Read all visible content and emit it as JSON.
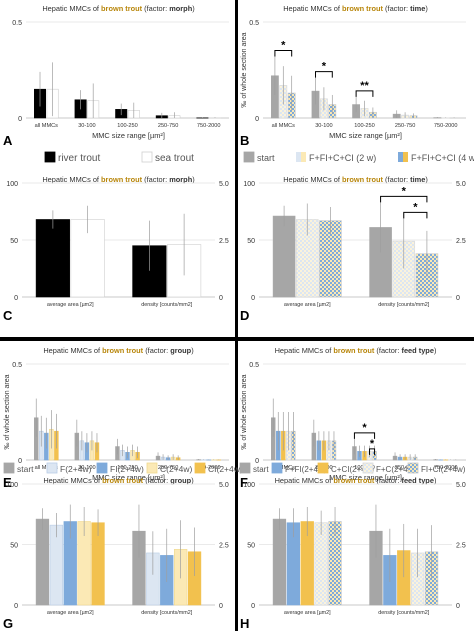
{
  "colors": {
    "brown": "#b8860b",
    "black": "#000000",
    "grey": "#a6a6a6",
    "lightblue": "#dce6f2",
    "blue": "#7eaadb",
    "lightyellow": "#fbe9b5",
    "yellow": "#f2c14e",
    "legend_text": "#555555",
    "err": "#bfbfbf"
  },
  "legends": {
    "morph": [
      {
        "label": "river trout",
        "style": "black"
      },
      {
        "label": "sea trout",
        "style": "white"
      }
    ],
    "time": [
      {
        "label": "start",
        "style": "grey"
      },
      {
        "label": "F+FI+C+CI (2 w)",
        "style": "split_light"
      },
      {
        "label": "F+FI+C+CI (4 w)",
        "style": "split_dark"
      }
    ],
    "group": [
      {
        "label": "start",
        "style": "grey"
      },
      {
        "label": "F(2+4w)",
        "style": "lightblue"
      },
      {
        "label": "FI(2+4w)",
        "style": "blue"
      },
      {
        "label": "C(2+4w)",
        "style": "lightyellow"
      },
      {
        "label": "CI(2+4w)",
        "style": "yellow"
      }
    ],
    "feed": [
      {
        "label": "start",
        "style": "grey"
      },
      {
        "label": "F+FI(2+4w)",
        "style": "blue"
      },
      {
        "label": "C+CI(2+4w)",
        "style": "yellow"
      },
      {
        "label": "F+C(2+4w)",
        "style": "lightmix"
      },
      {
        "label": "FI+CI(2+4w)",
        "style": "mix"
      }
    ]
  },
  "chart_data": [
    {
      "panel": "A",
      "type": "bar",
      "title_pre": "Hepatic MMCs of ",
      "title_brown": "brown trout",
      "title_post": " (factor: ",
      "title_factor": "morph",
      "title_end": ")",
      "xlabel": "MMC size range [µm²]",
      "ylabel": "",
      "ylim": [
        0,
        0.5
      ],
      "yticks": [
        "0",
        "0.5"
      ],
      "categories": [
        "all MMCs",
        "30-100",
        "100-250",
        "250-750",
        "750-2000"
      ],
      "series": [
        {
          "name": "river trout",
          "style": "black",
          "values": [
            0.15,
            0.095,
            0.045,
            0.012,
            0.001
          ],
          "err": [
            0.09,
            0.05,
            0.03,
            0.015,
            0.003
          ]
        },
        {
          "name": "sea trout",
          "style": "white",
          "values": [
            0.15,
            0.09,
            0.04,
            0.012,
            0.001
          ],
          "err": [
            0.14,
            0.09,
            0.04,
            0.018,
            0.003
          ]
        }
      ]
    },
    {
      "panel": "B",
      "type": "bar",
      "title_pre": "Hepatic MMCs of ",
      "title_brown": "brown trout",
      "title_post": " (factor: ",
      "title_factor": "time",
      "title_end": ")",
      "xlabel": "MMC size range [µm²]",
      "ylabel": "‰ of whole section area",
      "ylim": [
        0,
        0.5
      ],
      "yticks": [
        "0",
        "0.5"
      ],
      "categories": [
        "all MMCs",
        "30-100",
        "100-250",
        "250-750",
        "750-2000"
      ],
      "series": [
        {
          "name": "start",
          "style": "grey",
          "values": [
            0.22,
            0.14,
            0.07,
            0.02,
            0.002
          ],
          "err": [
            0.1,
            0.07,
            0.04,
            0.02,
            0.003
          ]
        },
        {
          "name": "F+FI+C+CI (2 w)",
          "style": "split_light",
          "values": [
            0.17,
            0.1,
            0.05,
            0.015,
            0.001
          ],
          "err": [
            0.1,
            0.06,
            0.04,
            0.015,
            0.002
          ]
        },
        {
          "name": "F+FI+C+CI (4 w)",
          "style": "split_dark",
          "values": [
            0.13,
            0.07,
            0.03,
            0.012,
            0.001
          ],
          "err": [
            0.09,
            0.05,
            0.025,
            0.012,
            0.002
          ]
        }
      ],
      "annotations": [
        {
          "category": 0,
          "label": "*"
        },
        {
          "category": 1,
          "label": "*"
        },
        {
          "category": 2,
          "label": "**"
        }
      ]
    },
    {
      "panel": "C",
      "type": "bar",
      "title_pre": "Hepatic MMCs of ",
      "title_brown": "brown trout",
      "title_post": " (factor: ",
      "title_factor": "morph",
      "title_end": ")",
      "xlabel": "",
      "ylabel": "",
      "ylim": [
        0,
        100
      ],
      "yticks": [
        "0",
        "50",
        "100"
      ],
      "ylim_right": [
        0,
        5
      ],
      "yticks_right": [
        "0",
        "2.5",
        "5.0"
      ],
      "categories": [
        "average area [µm2]",
        "density [counts/mm2]"
      ],
      "series": [
        {
          "name": "river trout",
          "style": "black",
          "values": [
            68,
            45
          ],
          "err": [
            8,
            22
          ]
        },
        {
          "name": "sea trout",
          "style": "white",
          "values": [
            68,
            46
          ],
          "err": [
            12,
            27
          ]
        }
      ]
    },
    {
      "panel": "D",
      "type": "bar",
      "title_pre": "Hepatic MMCs of ",
      "title_brown": "brown trout",
      "title_post": " (factor: ",
      "title_factor": "time",
      "title_end": ")",
      "xlabel": "",
      "ylabel": "",
      "ylim": [
        0,
        100
      ],
      "yticks": [
        "0",
        "50",
        "100"
      ],
      "ylim_right": [
        0,
        5
      ],
      "yticks_right": [
        "0",
        "2.5",
        "5.0"
      ],
      "categories": [
        "average area [µm2]",
        "density [counts/mm2]"
      ],
      "series": [
        {
          "name": "start",
          "style": "grey",
          "values": [
            71,
            61
          ],
          "err": [
            9,
            22
          ]
        },
        {
          "name": "F+FI+C+CI (2 w)",
          "style": "split_light",
          "values": [
            68,
            49
          ],
          "err": [
            14,
            24
          ]
        },
        {
          "name": "F+FI+C+CI (4 w)",
          "style": "split_dark",
          "values": [
            67,
            38
          ],
          "err": [
            12,
            20
          ]
        }
      ],
      "annotations": [
        {
          "category": 1,
          "label": "*"
        },
        {
          "category": 1,
          "label": "*"
        }
      ]
    },
    {
      "panel": "E",
      "type": "bar",
      "title_pre": "Hepatic MMCs of ",
      "title_brown": "brown trout",
      "title_post": " (factor: ",
      "title_factor": "group",
      "title_end": ")",
      "xlabel": "MMC size range [µm²]",
      "ylabel": "‰ of whole section area",
      "ylim": [
        0,
        0.5
      ],
      "yticks": [
        "0",
        "0.5"
      ],
      "categories": [
        "all MMCs",
        "30-100",
        "100-250",
        "250-750",
        "750-2000"
      ],
      "series": [
        {
          "name": "start",
          "style": "grey",
          "values": [
            0.22,
            0.14,
            0.07,
            0.02,
            0.002
          ],
          "err": [
            0.1,
            0.07,
            0.04,
            0.02,
            0.003
          ]
        },
        {
          "name": "F(2+4w)",
          "style": "lightblue",
          "values": [
            0.15,
            0.1,
            0.05,
            0.015,
            0.001
          ],
          "err": [
            0.08,
            0.05,
            0.03,
            0.015,
            0.002
          ]
        },
        {
          "name": "FI(2+4w)",
          "style": "blue",
          "values": [
            0.14,
            0.09,
            0.04,
            0.012,
            0.001
          ],
          "err": [
            0.08,
            0.05,
            0.03,
            0.012,
            0.002
          ]
        },
        {
          "name": "C(2+4w)",
          "style": "lightyellow",
          "values": [
            0.16,
            0.1,
            0.05,
            0.015,
            0.001
          ],
          "err": [
            0.1,
            0.05,
            0.03,
            0.015,
            0.002
          ]
        },
        {
          "name": "CI(2+4w)",
          "style": "yellow",
          "values": [
            0.15,
            0.09,
            0.04,
            0.012,
            0.001
          ],
          "err": [
            0.09,
            0.05,
            0.03,
            0.012,
            0.002
          ]
        }
      ]
    },
    {
      "panel": "F",
      "type": "bar",
      "title_pre": "Hepatic MMCs of ",
      "title_brown": "brown trout",
      "title_post": " (factor: ",
      "title_factor": "feed type",
      "title_end": ")",
      "xlabel": "MMC size range [µm²]",
      "ylabel": "‰ of whole section area",
      "ylim": [
        0,
        0.5
      ],
      "yticks": [
        "0",
        "0.5"
      ],
      "categories": [
        "all MMCs",
        "30-100",
        "100-250",
        "250-750",
        "750-2000"
      ],
      "series": [
        {
          "name": "start",
          "style": "grey",
          "values": [
            0.22,
            0.14,
            0.07,
            0.02,
            0.002
          ],
          "err": [
            0.1,
            0.07,
            0.04,
            0.02,
            0.003
          ]
        },
        {
          "name": "F+FI(2+4w)",
          "style": "blue",
          "values": [
            0.15,
            0.1,
            0.045,
            0.015,
            0.001
          ],
          "err": [
            0.1,
            0.05,
            0.03,
            0.015,
            0.002
          ]
        },
        {
          "name": "C+CI(2+4w)",
          "style": "yellow",
          "values": [
            0.15,
            0.1,
            0.045,
            0.015,
            0.001
          ],
          "err": [
            0.1,
            0.05,
            0.03,
            0.015,
            0.002
          ]
        },
        {
          "name": "F+C(2+4w)",
          "style": "lightmix",
          "values": [
            0.15,
            0.1,
            0.045,
            0.015,
            0.001
          ],
          "err": [
            0.1,
            0.05,
            0.03,
            0.015,
            0.002
          ]
        },
        {
          "name": "FI+CI(2+4w)",
          "style": "mix",
          "values": [
            0.15,
            0.1,
            0.045,
            0.015,
            0.001
          ],
          "err": [
            0.1,
            0.05,
            0.03,
            0.015,
            0.002
          ]
        }
      ],
      "annotations": [
        {
          "category": 2,
          "label": "*"
        },
        {
          "category": 2,
          "label": "*"
        }
      ]
    },
    {
      "panel": "G",
      "type": "bar",
      "title_pre": "Hepatic MMCs of ",
      "title_brown": "brown trout",
      "title_post": " (factor: ",
      "title_factor": "group",
      "title_end": ")",
      "xlabel": "",
      "ylabel": "",
      "ylim": [
        0,
        100
      ],
      "yticks": [
        "0",
        "50",
        "100"
      ],
      "ylim_right": [
        0,
        5
      ],
      "yticks_right": [
        "0",
        "2.5",
        "5.0"
      ],
      "categories": [
        "average area [µm2]",
        "density [counts/mm2]"
      ],
      "series": [
        {
          "name": "start",
          "style": "grey",
          "values": [
            71,
            61
          ],
          "err": [
            9,
            22
          ]
        },
        {
          "name": "F(2+4w)",
          "style": "lightblue",
          "values": [
            66,
            43
          ],
          "err": [
            10,
            18
          ]
        },
        {
          "name": "FI(2+4w)",
          "style": "blue",
          "values": [
            69,
            41
          ],
          "err": [
            14,
            22
          ]
        },
        {
          "name": "C(2+4w)",
          "style": "lightyellow",
          "values": [
            69,
            46
          ],
          "err": [
            12,
            24
          ]
        },
        {
          "name": "CI(2+4w)",
          "style": "yellow",
          "values": [
            68,
            44
          ],
          "err": [
            11,
            20
          ]
        }
      ]
    },
    {
      "panel": "H",
      "type": "bar",
      "title_pre": "Hepatic MMCs of ",
      "title_brown": "brown trout",
      "title_post": " (factor: ",
      "title_factor": "feed type",
      "title_end": ")",
      "xlabel": "",
      "ylabel": "",
      "ylim": [
        0,
        100
      ],
      "yticks": [
        "0",
        "50",
        "100"
      ],
      "ylim_right": [
        0,
        5
      ],
      "yticks_right": [
        "0",
        "2.5",
        "5.0"
      ],
      "categories": [
        "average area [µm2]",
        "density [counts/mm2]"
      ],
      "series": [
        {
          "name": "start",
          "style": "grey",
          "values": [
            71,
            61
          ],
          "err": [
            9,
            22
          ]
        },
        {
          "name": "F+FI(2+4w)",
          "style": "blue",
          "values": [
            68,
            41
          ],
          "err": [
            12,
            22
          ]
        },
        {
          "name": "C+CI(2+4w)",
          "style": "yellow",
          "values": [
            69,
            45
          ],
          "err": [
            12,
            22
          ]
        },
        {
          "name": "F+C(2+4w)",
          "style": "lightmix",
          "values": [
            68,
            43
          ],
          "err": [
            10,
            20
          ]
        },
        {
          "name": "FI+CI(2+4w)",
          "style": "mix",
          "values": [
            69,
            44
          ],
          "err": [
            12,
            22
          ]
        }
      ]
    }
  ]
}
